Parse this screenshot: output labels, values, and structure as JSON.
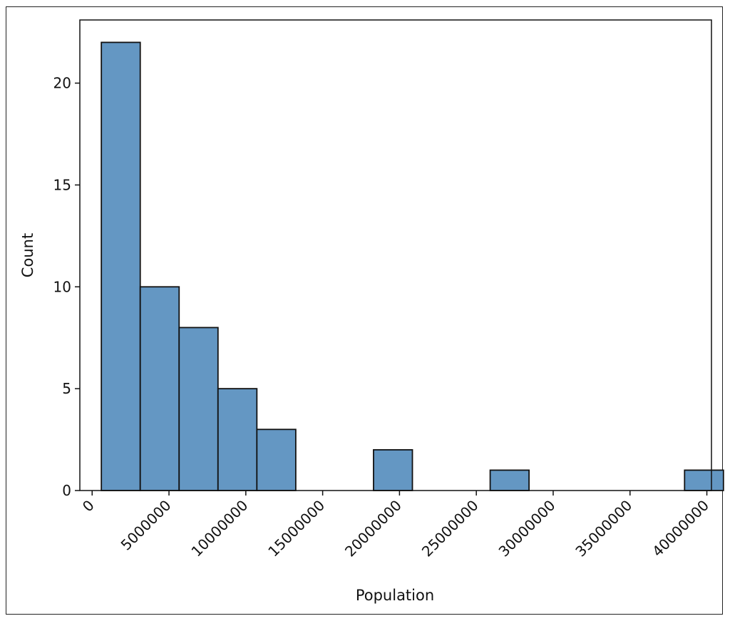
{
  "chart_data": {
    "type": "bar",
    "title": "",
    "xlabel": "Population",
    "ylabel": "Count",
    "bar_color": "#6497c3",
    "edge_color": "#111111",
    "grid": false,
    "xlim": [
      -800000,
      40300000
    ],
    "ylim": [
      0,
      23.1
    ],
    "xticks": [
      0,
      5000000,
      10000000,
      15000000,
      20000000,
      25000000,
      30000000,
      35000000,
      40000000
    ],
    "xtick_labels": [
      "0",
      "5000000",
      "10000000",
      "15000000",
      "20000000",
      "25000000",
      "30000000",
      "35000000",
      "40000000"
    ],
    "yticks": [
      0,
      5,
      10,
      15,
      20
    ],
    "ytick_labels": [
      "0",
      "5",
      "10",
      "15",
      "20"
    ],
    "bin_edges": [
      600000,
      3130000,
      5660000,
      8190000,
      10720000,
      13250000,
      15780000,
      18310000,
      20840000,
      23370000,
      25900000,
      28430000,
      30960000,
      33490000,
      36020000,
      38550000,
      41080000
    ],
    "counts": [
      22,
      10,
      8,
      5,
      3,
      0,
      0,
      2,
      0,
      0,
      1,
      0,
      0,
      0,
      0,
      1
    ]
  }
}
